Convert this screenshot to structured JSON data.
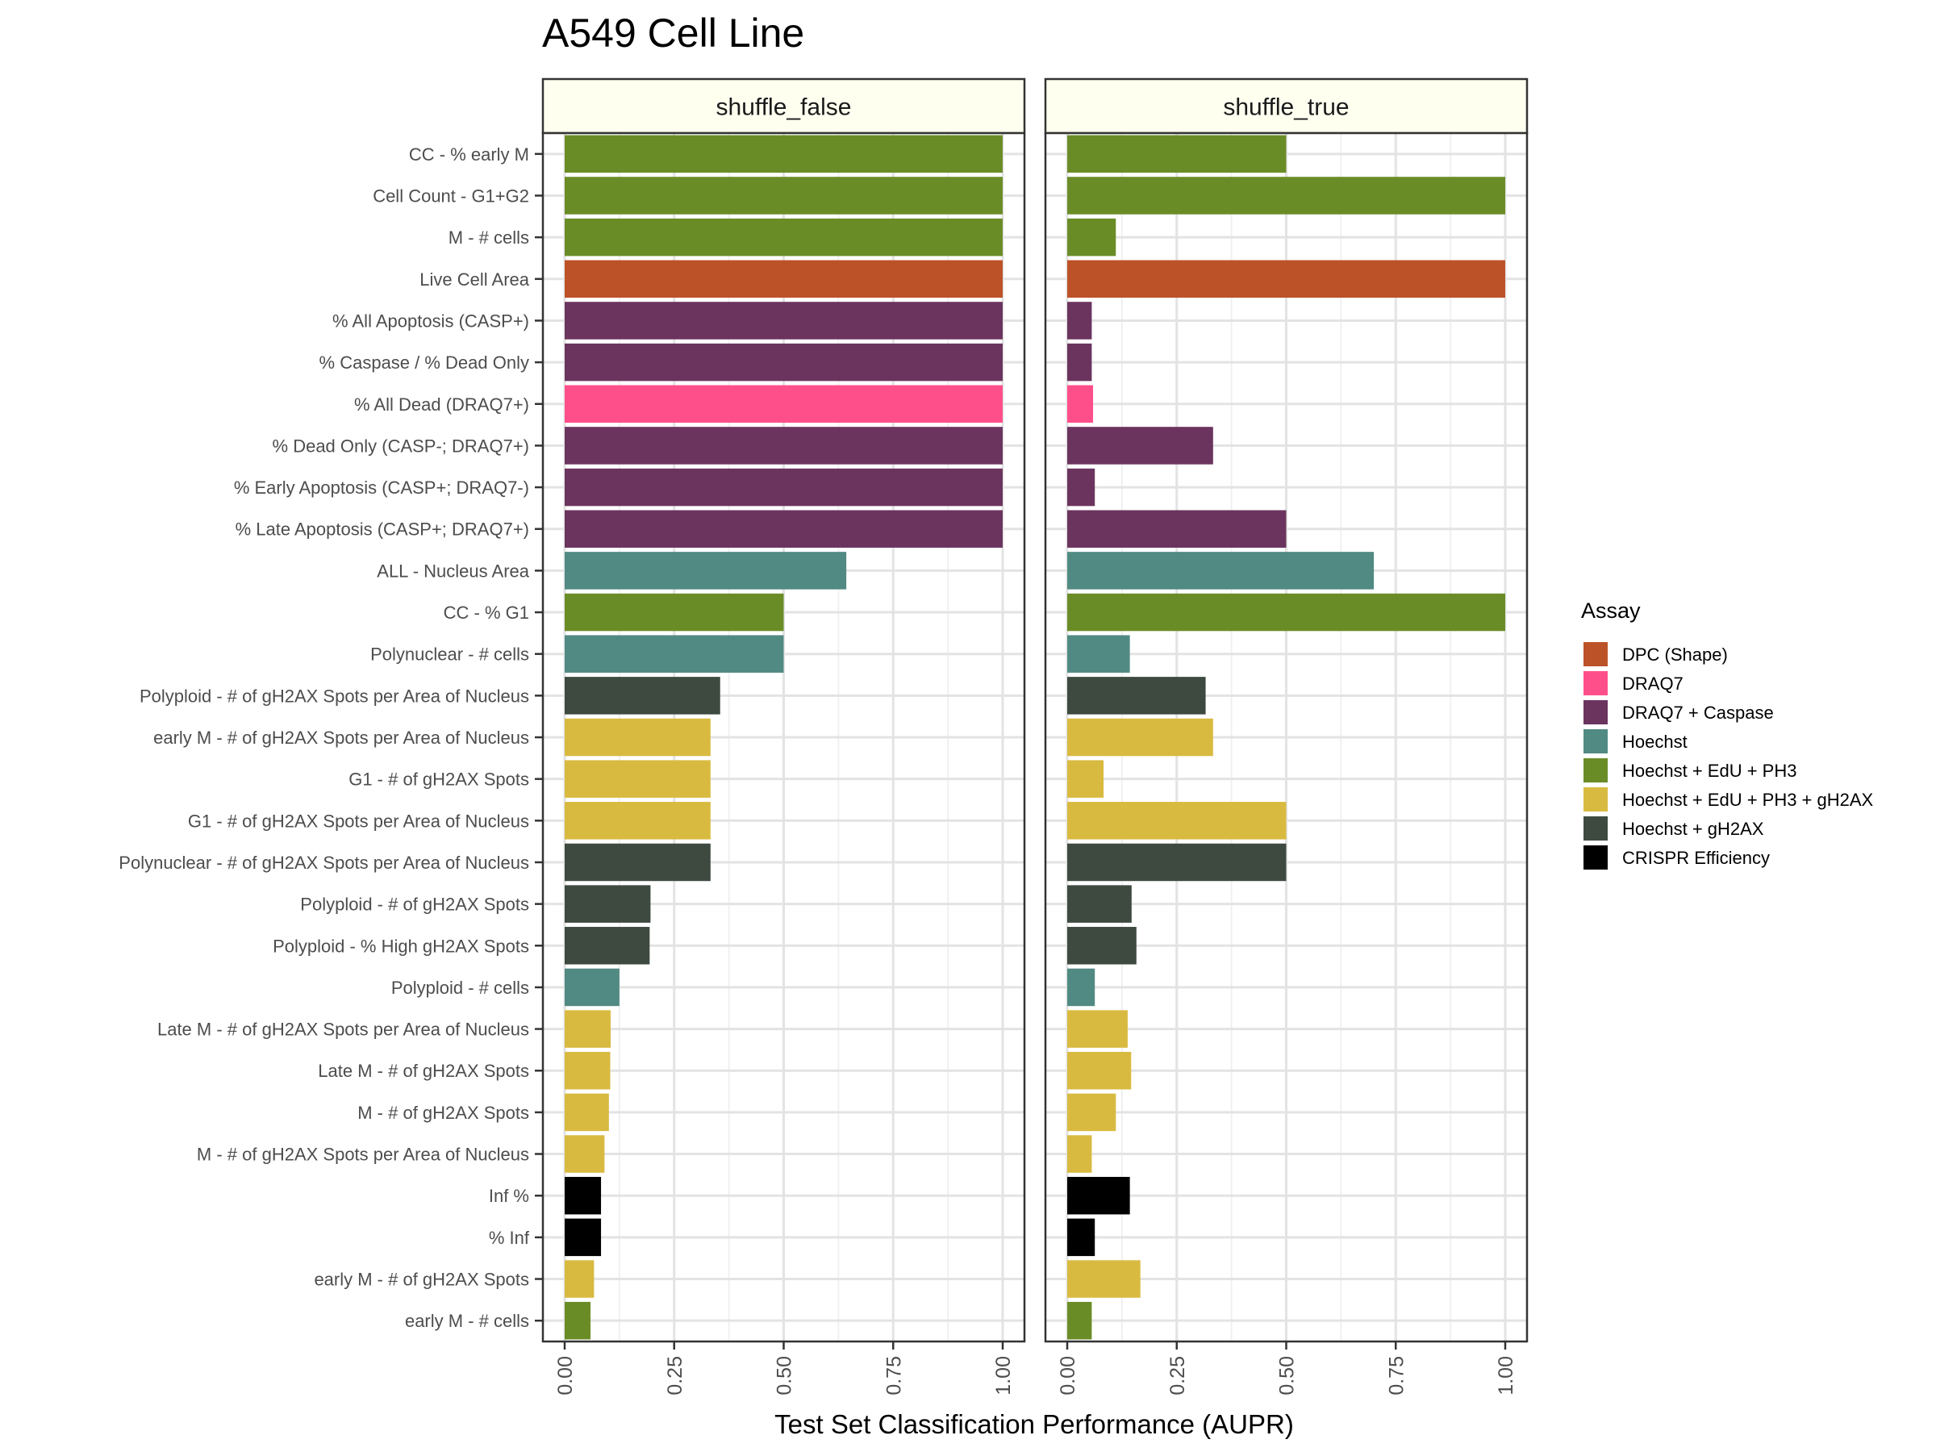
{
  "chart_data": {
    "type": "bar",
    "orientation": "horizontal",
    "title": "A549 Cell Line",
    "xlabel": "Test Set Classification Performance (AUPR)",
    "ylabel": "",
    "xlim": [
      0,
      1
    ],
    "xticks": [
      "0.00",
      "0.25",
      "0.50",
      "0.75",
      "1.00"
    ],
    "grid": true,
    "legend_title": "Assay",
    "legend_position": "right",
    "legend": [
      {
        "name": "DPC (Shape)",
        "color": "#BC5227"
      },
      {
        "name": "DRAQ7",
        "color": "#FF4F8A"
      },
      {
        "name": "DRAQ7 + Caspase",
        "color": "#6B345E"
      },
      {
        "name": "Hoechst",
        "color": "#518A82"
      },
      {
        "name": "Hoechst + EdU + PH3",
        "color": "#6A8C27"
      },
      {
        "name": "Hoechst + EdU + PH3 + gH2AX",
        "color": "#D9BA40"
      },
      {
        "name": "Hoechst + gH2AX",
        "color": "#3E4A40"
      },
      {
        "name": "CRISPR Efficiency",
        "color": "#000000"
      }
    ],
    "categories": [
      "CC - % early M",
      "Cell Count - G1+G2",
      "M - # cells",
      "Live Cell Area",
      "% All Apoptosis (CASP+)",
      "% Caspase / % Dead Only",
      "% All Dead (DRAQ7+)",
      "% Dead Only (CASP-; DRAQ7+)",
      "% Early Apoptosis (CASP+; DRAQ7-)",
      "% Late Apoptosis (CASP+; DRAQ7+)",
      "ALL - Nucleus Area",
      "CC - % G1",
      "Polynuclear - # cells",
      "Polyploid - # of gH2AX Spots per Area of Nucleus",
      "early M - # of gH2AX Spots per Area of Nucleus",
      "G1 - # of gH2AX Spots",
      "G1 - # of gH2AX Spots per Area of Nucleus",
      "Polynuclear - # of gH2AX Spots per Area of Nucleus",
      "Polyploid - # of gH2AX Spots",
      "Polyploid - % High gH2AX Spots",
      "Polyploid - # cells",
      "Late M - # of gH2AX Spots per Area of Nucleus",
      "Late M - # of gH2AX Spots",
      "M - # of gH2AX Spots",
      "M - # of gH2AX Spots per Area of Nucleus",
      "Inf %",
      "% Inf",
      "early M - # of gH2AX Spots",
      "early M - # cells"
    ],
    "assay": [
      "Hoechst + EdU + PH3",
      "Hoechst + EdU + PH3",
      "Hoechst + EdU + PH3",
      "DPC (Shape)",
      "DRAQ7 + Caspase",
      "DRAQ7 + Caspase",
      "DRAQ7",
      "DRAQ7 + Caspase",
      "DRAQ7 + Caspase",
      "DRAQ7 + Caspase",
      "Hoechst",
      "Hoechst + EdU + PH3",
      "Hoechst",
      "Hoechst + gH2AX",
      "Hoechst + EdU + PH3 + gH2AX",
      "Hoechst + EdU + PH3 + gH2AX",
      "Hoechst + EdU + PH3 + gH2AX",
      "Hoechst + gH2AX",
      "Hoechst + gH2AX",
      "Hoechst + gH2AX",
      "Hoechst",
      "Hoechst + EdU + PH3 + gH2AX",
      "Hoechst + EdU + PH3 + gH2AX",
      "Hoechst + EdU + PH3 + gH2AX",
      "Hoechst + EdU + PH3 + gH2AX",
      "CRISPR Efficiency",
      "CRISPR Efficiency",
      "Hoechst + EdU + PH3 + gH2AX",
      "Hoechst + EdU + PH3"
    ],
    "panels": [
      {
        "name": "shuffle_false",
        "values": [
          1.0,
          1.0,
          1.0,
          1.0,
          1.0,
          1.0,
          1.0,
          1.0,
          1.0,
          1.0,
          0.643,
          0.5,
          0.5,
          0.355,
          0.333,
          0.333,
          0.333,
          0.333,
          0.196,
          0.194,
          0.125,
          0.105,
          0.104,
          0.101,
          0.091,
          0.083,
          0.083,
          0.067,
          0.059
        ]
      },
      {
        "name": "shuffle_true",
        "values": [
          0.5,
          1.0,
          0.111,
          1.0,
          0.056,
          0.056,
          0.059,
          0.333,
          0.063,
          0.5,
          0.7,
          1.0,
          0.143,
          0.316,
          0.333,
          0.083,
          0.5,
          0.5,
          0.147,
          0.158,
          0.063,
          0.138,
          0.146,
          0.111,
          0.056,
          0.143,
          0.063,
          0.167,
          0.056
        ]
      }
    ]
  }
}
